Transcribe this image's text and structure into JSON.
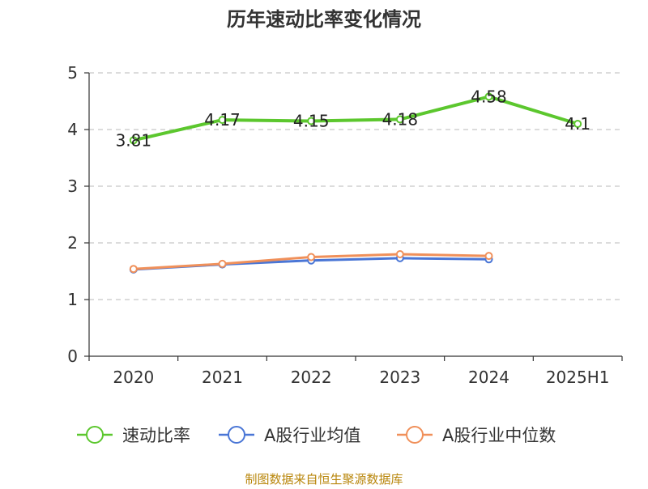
{
  "chart_data": {
    "type": "line",
    "title": "历年速动比率变化情况",
    "categories": [
      "2020",
      "2021",
      "2022",
      "2023",
      "2024",
      "2025H1"
    ],
    "ylim": [
      0,
      5
    ],
    "yticks": [
      "0",
      "1",
      "2",
      "3",
      "4",
      "5"
    ],
    "grid": true,
    "legend_position": "bottom",
    "series": [
      {
        "name": "速动比率",
        "values": [
          3.81,
          4.17,
          4.15,
          4.18,
          4.58,
          4.1
        ],
        "labels": [
          "3.81",
          "4.17",
          "4.15",
          "4.18",
          "4.58",
          "4.1"
        ],
        "color": "#5cc72e",
        "show_labels": true
      },
      {
        "name": "A股行业均值",
        "values": [
          1.53,
          1.62,
          1.69,
          1.73,
          1.71,
          null
        ],
        "color": "#4a76d6",
        "show_labels": false
      },
      {
        "name": "A股行业中位数",
        "values": [
          1.54,
          1.63,
          1.75,
          1.8,
          1.77,
          null
        ],
        "color": "#f0905a",
        "show_labels": false
      }
    ]
  },
  "source": "制图数据来自恒生聚源数据库"
}
